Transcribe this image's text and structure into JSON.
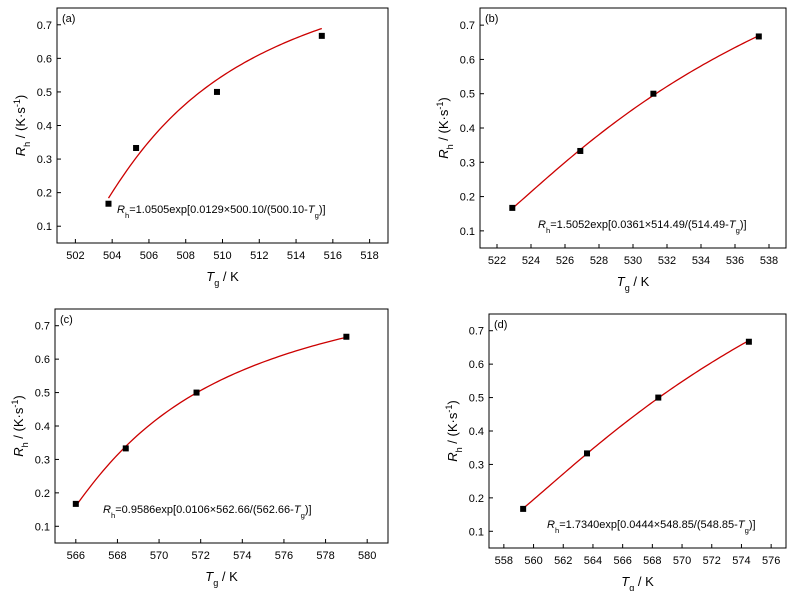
{
  "figure": {
    "ylabel": {
      "sym": "R",
      "sub": "h",
      "rest": " / (K·s",
      "sup": "-1",
      "close": ")"
    },
    "xlabel": {
      "sym": "T",
      "sub": "g",
      "rest": " / K"
    }
  },
  "chart_data": [
    {
      "panel": "(a)",
      "type": "scatter",
      "xlim": [
        501,
        519
      ],
      "ylim": [
        0.05,
        0.75
      ],
      "xticks": [
        "502",
        "504",
        "506",
        "508",
        "510",
        "512",
        "514",
        "516",
        "518"
      ],
      "yticks": [
        "0.1",
        "0.2",
        "0.3",
        "0.4",
        "0.5",
        "0.6",
        "0.7"
      ],
      "points": {
        "x": [
          503.8,
          505.3,
          509.7,
          515.4
        ],
        "y": [
          0.167,
          0.333,
          0.5,
          0.667
        ]
      },
      "fit": {
        "A": 1.0505,
        "B": 0.0129,
        "T0": 500.1,
        "color": "#cc0000"
      },
      "equation": {
        "lhs_sym": "R",
        "lhs_sub": "h",
        "body": "=1.0505exp[0.0129×500.10/(500.10-",
        "var_sym": "T",
        "var_sub": "g",
        "end": ")]"
      }
    },
    {
      "panel": "(b)",
      "type": "scatter",
      "xlim": [
        521,
        539
      ],
      "ylim": [
        0.05,
        0.75
      ],
      "xticks": [
        "522",
        "524",
        "526",
        "528",
        "530",
        "532",
        "534",
        "536",
        "538"
      ],
      "yticks": [
        "0.1",
        "0.2",
        "0.3",
        "0.4",
        "0.5",
        "0.6",
        "0.7"
      ],
      "points": {
        "x": [
          522.9,
          526.9,
          531.2,
          537.4
        ],
        "y": [
          0.167,
          0.333,
          0.5,
          0.667
        ]
      },
      "fit": {
        "A": 1.5052,
        "B": 0.0361,
        "T0": 514.49,
        "color": "#cc0000"
      },
      "equation": {
        "lhs_sym": "R",
        "lhs_sub": "h",
        "body": "=1.5052exp[0.0361×514.49/(514.49-",
        "var_sym": "T",
        "var_sub": "g",
        "end": ")]"
      }
    },
    {
      "panel": "(c)",
      "type": "scatter",
      "xlim": [
        565,
        581
      ],
      "ylim": [
        0.05,
        0.75
      ],
      "xticks": [
        "566",
        "568",
        "570",
        "572",
        "574",
        "576",
        "578",
        "580"
      ],
      "yticks": [
        "0.1",
        "0.2",
        "0.3",
        "0.4",
        "0.5",
        "0.6",
        "0.7"
      ],
      "points": {
        "x": [
          566.0,
          568.4,
          571.8,
          579.0
        ],
        "y": [
          0.167,
          0.333,
          0.5,
          0.667
        ]
      },
      "fit": {
        "A": 0.9586,
        "B": 0.0106,
        "T0": 562.66,
        "color": "#cc0000"
      },
      "equation": {
        "lhs_sym": "R",
        "lhs_sub": "h",
        "body": "=0.9586exp[0.0106×562.66/(562.66-",
        "var_sym": "T",
        "var_sub": "g",
        "end": ")]"
      }
    },
    {
      "panel": "(d)",
      "type": "scatter",
      "xlim": [
        557,
        577
      ],
      "ylim": [
        0.05,
        0.75
      ],
      "xticks": [
        "558",
        "560",
        "562",
        "564",
        "566",
        "568",
        "570",
        "572",
        "574",
        "576"
      ],
      "yticks": [
        "0.1",
        "0.2",
        "0.3",
        "0.4",
        "0.5",
        "0.6",
        "0.7"
      ],
      "points": {
        "x": [
          559.3,
          563.6,
          568.4,
          574.5
        ],
        "y": [
          0.167,
          0.333,
          0.5,
          0.667
        ]
      },
      "fit": {
        "A": 1.734,
        "B": 0.0444,
        "T0": 548.85,
        "color": "#cc0000"
      },
      "equation": {
        "lhs_sym": "R",
        "lhs_sub": "h",
        "body": "=1.7340exp[0.0444×548.85/(548.85-",
        "var_sym": "T",
        "var_sub": "g",
        "end": ")]"
      }
    }
  ]
}
